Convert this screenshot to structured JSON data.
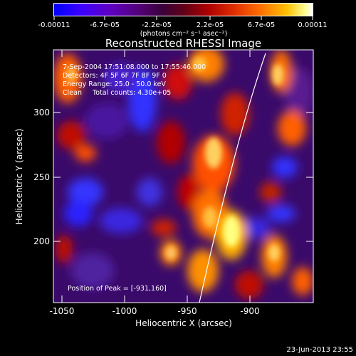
{
  "colorbar": {
    "tick_labels": [
      "-0.00011",
      "-6.7e-05",
      "-2.2e-05",
      "2.2e-05",
      "6.7e-05",
      "0.00011"
    ],
    "units": "(photons cm⁻² s⁻¹ asec⁻²)"
  },
  "plot": {
    "title": "Reconstructed RHESSI Image",
    "xlabel": "Heliocentric X (arcsec)",
    "ylabel": "Heliocentric Y (arcsec)",
    "x_ticks": [
      "-1050",
      "-1000",
      "-950",
      "-900"
    ],
    "y_ticks": [
      "300",
      "250",
      "200"
    ],
    "annotations": {
      "line1": "7-Sep-2004 17:51:08.000 to 17:55:46.000",
      "line2": "Detectors: 4F 5F 6F 7F 8F 9F 0",
      "line3": "Energy Range: 25.0 - 50.0 keV",
      "line4": "Clean     Total counts: 4.30e+05",
      "peak": "Position of Peak = [-931,160]"
    }
  },
  "footer": {
    "timestamp": "23-Jun-2013 23:55"
  },
  "colors": {
    "background": "#000000",
    "limb_line": "#ffffff"
  }
}
